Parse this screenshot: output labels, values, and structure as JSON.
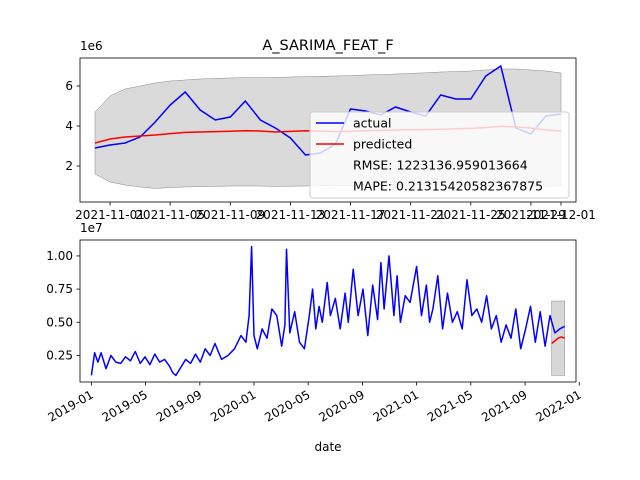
{
  "figure": {
    "title": "A_SARIMA_FEAT_F"
  },
  "chart_data": [
    {
      "type": "line",
      "title": "A_SARIMA_FEAT_F",
      "ylabel_offset": "1e6",
      "ylim": [
        0.2,
        7.4
      ],
      "yticks": [
        2,
        4,
        6
      ],
      "xlim": [
        "2021-10-30",
        "2021-12-02"
      ],
      "x_tick_labels": [
        "2021-11-01",
        "2021-11-05",
        "2021-11-09",
        "2021-11-13",
        "2021-11-17",
        "2021-11-21",
        "2021-11-25",
        "2021-11-29",
        "2021-12-01"
      ],
      "x_tick_dates": [
        "2021-11-01",
        "2021-11-05",
        "2021-11-09",
        "2021-11-13",
        "2021-11-17",
        "2021-11-21",
        "2021-11-25",
        "2021-11-29",
        "2021-12-01"
      ],
      "dates": [
        "2021-10-31",
        "2021-11-01",
        "2021-11-02",
        "2021-11-03",
        "2021-11-04",
        "2021-11-05",
        "2021-11-06",
        "2021-11-07",
        "2021-11-08",
        "2021-11-09",
        "2021-11-10",
        "2021-11-11",
        "2021-11-12",
        "2021-11-13",
        "2021-11-14",
        "2021-11-15",
        "2021-11-16",
        "2021-11-17",
        "2021-11-18",
        "2021-11-19",
        "2021-11-20",
        "2021-11-21",
        "2021-11-22",
        "2021-11-23",
        "2021-11-24",
        "2021-11-25",
        "2021-11-26",
        "2021-11-27",
        "2021-11-28",
        "2021-11-29",
        "2021-11-30",
        "2021-12-01"
      ],
      "series": [
        {
          "name": "actual",
          "color": "#0000ff",
          "values": [
            2.9,
            3.05,
            3.15,
            3.45,
            4.2,
            5.05,
            5.7,
            4.8,
            4.3,
            4.45,
            5.25,
            4.3,
            3.9,
            3.4,
            2.55,
            2.65,
            3.1,
            4.85,
            4.75,
            4.55,
            4.95,
            4.7,
            4.5,
            5.55,
            5.35,
            5.35,
            6.5,
            7.0,
            3.9,
            3.6,
            4.5,
            4.6
          ]
        },
        {
          "name": "predicted",
          "color": "#ff0000",
          "values": [
            3.15,
            3.35,
            3.45,
            3.5,
            3.55,
            3.62,
            3.68,
            3.7,
            3.72,
            3.74,
            3.76,
            3.75,
            3.7,
            3.73,
            3.76,
            3.74,
            3.72,
            3.74,
            3.76,
            3.78,
            3.8,
            3.81,
            3.82,
            3.84,
            3.86,
            3.88,
            3.92,
            3.98,
            3.95,
            3.9,
            3.8,
            3.75
          ]
        }
      ],
      "band": {
        "color": "#d3d3d3",
        "upper": [
          4.7,
          5.5,
          5.85,
          6.0,
          6.15,
          6.25,
          6.3,
          6.35,
          6.38,
          6.4,
          6.42,
          6.42,
          6.43,
          6.45,
          6.47,
          6.48,
          6.5,
          6.52,
          6.55,
          6.57,
          6.6,
          6.63,
          6.66,
          6.7,
          6.72,
          6.75,
          6.8,
          6.85,
          6.85,
          6.8,
          6.75,
          6.65
        ],
        "lower": [
          1.6,
          1.2,
          1.05,
          0.95,
          0.88,
          0.92,
          0.95,
          0.97,
          0.98,
          1.0,
          1.0,
          1.0,
          0.98,
          0.99,
          1.0,
          1.01,
          1.02,
          1.03,
          1.03,
          1.04,
          1.05,
          1.05,
          1.06,
          1.05,
          1.06,
          1.05,
          1.02,
          0.98,
          0.95,
          0.97,
          0.99,
          1.0
        ]
      },
      "legend": {
        "placement": "right",
        "entries": [
          "actual",
          "predicted"
        ],
        "notes": [
          "RMSE: 1223136.959013664",
          "MAPE: 0.21315420582367875"
        ]
      }
    },
    {
      "type": "line",
      "xlabel": "date",
      "ylabel_offset": "1e7",
      "ylim": [
        0.05,
        1.12
      ],
      "yticks": [
        0.25,
        0.5,
        0.75,
        1.0
      ],
      "ytick_labels": [
        "0.25",
        "0.50",
        "0.75",
        "1.00"
      ],
      "xlim": [
        2018.93,
        2021.98
      ],
      "x_tick_labels": [
        "2019-01",
        "2019-05",
        "2019-09",
        "2020-01",
        "2020-05",
        "2020-09",
        "2021-01",
        "2021-05",
        "2021-09",
        "2022-01"
      ],
      "x_tick_values": [
        2019.0,
        2019.333,
        2019.667,
        2020.0,
        2020.333,
        2020.667,
        2021.0,
        2021.333,
        2021.667,
        2022.0
      ],
      "series": [
        {
          "name": "actual",
          "color": "#0000ff",
          "x": [
            2019.0,
            2019.02,
            2019.04,
            2019.06,
            2019.09,
            2019.12,
            2019.15,
            2019.18,
            2019.21,
            2019.24,
            2019.27,
            2019.3,
            2019.33,
            2019.36,
            2019.39,
            2019.42,
            2019.45,
            2019.48,
            2019.5,
            2019.52,
            2019.55,
            2019.58,
            2019.61,
            2019.64,
            2019.67,
            2019.7,
            2019.73,
            2019.76,
            2019.8,
            2019.84,
            2019.88,
            2019.92,
            2019.95,
            2019.97,
            2019.985,
            2020.0,
            2020.02,
            2020.05,
            2020.08,
            2020.11,
            2020.14,
            2020.17,
            2020.19,
            2020.2,
            2020.22,
            2020.25,
            2020.28,
            2020.31,
            2020.34,
            2020.36,
            2020.38,
            2020.4,
            2020.42,
            2020.45,
            2020.47,
            2020.5,
            2020.53,
            2020.56,
            2020.58,
            2020.61,
            2020.64,
            2020.67,
            2020.7,
            2020.73,
            2020.76,
            2020.78,
            2020.8,
            2020.83,
            2020.86,
            2020.88,
            2020.9,
            2020.93,
            2020.96,
            2021.0,
            2021.03,
            2021.06,
            2021.08,
            2021.1,
            2021.13,
            2021.16,
            2021.19,
            2021.22,
            2021.25,
            2021.28,
            2021.31,
            2021.34,
            2021.37,
            2021.4,
            2021.43,
            2021.46,
            2021.49,
            2021.52,
            2021.55,
            2021.58,
            2021.61,
            2021.64,
            2021.67,
            2021.7,
            2021.73,
            2021.76,
            2021.79,
            2021.82,
            2021.85,
            2021.88,
            2021.91
          ],
          "values": [
            0.1,
            0.27,
            0.2,
            0.27,
            0.15,
            0.25,
            0.2,
            0.19,
            0.24,
            0.21,
            0.28,
            0.19,
            0.24,
            0.18,
            0.26,
            0.2,
            0.22,
            0.17,
            0.12,
            0.1,
            0.16,
            0.22,
            0.19,
            0.26,
            0.2,
            0.3,
            0.25,
            0.34,
            0.22,
            0.25,
            0.3,
            0.4,
            0.35,
            0.55,
            1.07,
            0.4,
            0.3,
            0.45,
            0.38,
            0.6,
            0.55,
            0.32,
            0.48,
            1.05,
            0.42,
            0.58,
            0.35,
            0.3,
            0.55,
            0.75,
            0.45,
            0.62,
            0.5,
            0.8,
            0.55,
            0.68,
            0.45,
            0.72,
            0.5,
            0.9,
            0.55,
            0.75,
            0.4,
            0.78,
            0.52,
            0.95,
            0.6,
            1.0,
            0.55,
            0.85,
            0.5,
            0.7,
            0.65,
            0.92,
            0.55,
            0.78,
            0.5,
            0.6,
            0.85,
            0.45,
            0.72,
            0.5,
            0.58,
            0.45,
            0.82,
            0.55,
            0.6,
            0.5,
            0.7,
            0.45,
            0.55,
            0.35,
            0.48,
            0.38,
            0.6,
            0.3,
            0.45,
            0.62,
            0.35,
            0.58,
            0.32,
            0.55,
            0.42,
            0.45,
            0.47
          ]
        },
        {
          "name": "predicted",
          "color": "#ff0000",
          "x": [
            2021.83,
            2021.85,
            2021.87,
            2021.89,
            2021.91
          ],
          "values": [
            0.34,
            0.36,
            0.38,
            0.39,
            0.38
          ]
        }
      ],
      "band": {
        "color": "#d3d3d3",
        "x_start": 2021.83,
        "x_end": 2021.91,
        "upper": 0.66,
        "lower": 0.1
      }
    }
  ]
}
